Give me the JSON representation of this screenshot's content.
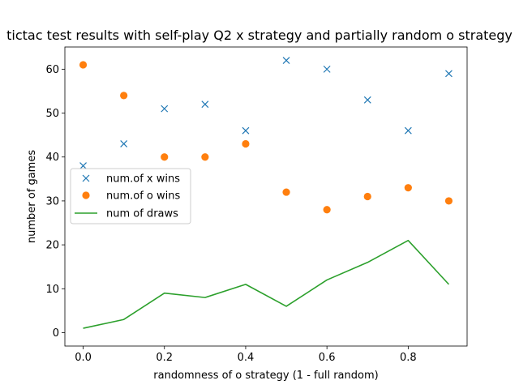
{
  "chart_data": {
    "type": "scatter",
    "title": "tictac test results with self-play Q2 x strategy and partially random o strategy",
    "xlabel": "randomness of o strategy (1 - full random)",
    "ylabel": "number of games",
    "xlim": [
      -0.045,
      0.945
    ],
    "ylim": [
      -3.05,
      65.05
    ],
    "xticks": [
      0.0,
      0.2,
      0.4,
      0.6,
      0.8
    ],
    "xtick_labels": [
      "0.0",
      "0.2",
      "0.4",
      "0.6",
      "0.8"
    ],
    "yticks": [
      0,
      10,
      20,
      30,
      40,
      50,
      60
    ],
    "ytick_labels": [
      "0",
      "10",
      "20",
      "30",
      "40",
      "50",
      "60"
    ],
    "grid": false,
    "legend_position": "center-left",
    "x": [
      0.0,
      0.1,
      0.2,
      0.3,
      0.4,
      0.5,
      0.6,
      0.7,
      0.8,
      0.9
    ],
    "series": [
      {
        "name": "num.of x wins",
        "kind": "scatter",
        "marker": "x",
        "color": "#1f77b4",
        "values": [
          38,
          43,
          51,
          52,
          46,
          62,
          60,
          53,
          46,
          59
        ]
      },
      {
        "name": "num.of o wins",
        "kind": "scatter",
        "marker": "o",
        "color": "#ff7f0e",
        "values": [
          61,
          54,
          40,
          40,
          43,
          32,
          28,
          31,
          33,
          30
        ]
      },
      {
        "name": "num of draws",
        "kind": "line",
        "color": "#2ca02c",
        "values": [
          1,
          3,
          9,
          8,
          11,
          6,
          12,
          16,
          21,
          11
        ]
      }
    ]
  }
}
